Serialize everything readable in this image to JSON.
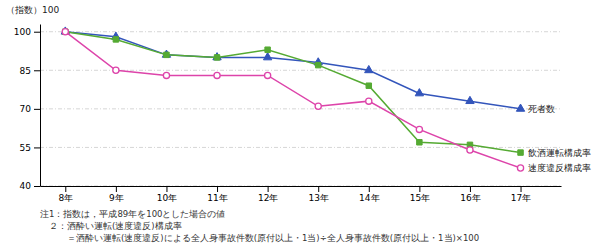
{
  "chart_data": {
    "type": "line",
    "y_label": "（指数）100",
    "x": [
      8,
      9,
      10,
      11,
      12,
      13,
      14,
      15,
      16,
      17
    ],
    "xlim": [
      7.5,
      17.8
    ],
    "xticks": [
      {
        "value": 8,
        "label": "8年"
      },
      {
        "value": 9,
        "label": "9年"
      },
      {
        "value": 10,
        "label": "10年"
      },
      {
        "value": 11,
        "label": "11年"
      },
      {
        "value": 12,
        "label": "12年"
      },
      {
        "value": 13,
        "label": "13年"
      },
      {
        "value": 14,
        "label": "14年"
      },
      {
        "value": 15,
        "label": "15年"
      },
      {
        "value": 16,
        "label": "16年"
      },
      {
        "value": 17,
        "label": "17年"
      }
    ],
    "ylim": [
      40,
      103
    ],
    "yticks": [
      40,
      55,
      70,
      85,
      100
    ],
    "grid": true,
    "series": [
      {
        "name": "死者数",
        "color": "#3355bb",
        "marker": "triangle",
        "values": [
          100,
          98,
          91,
          90,
          90,
          88,
          85,
          76,
          73,
          70
        ]
      },
      {
        "name": "飲酒運転構成率",
        "color": "#55aa33",
        "marker": "square",
        "values": [
          100,
          97,
          91,
          90,
          93,
          87,
          79,
          57,
          56,
          53
        ]
      },
      {
        "name": "速度違反構成率",
        "color": "#dd44aa",
        "marker": "open-circle",
        "values": [
          100,
          85,
          83,
          83,
          83,
          71,
          73,
          62,
          54,
          47
        ]
      }
    ],
    "notes": [
      "注1：指数は，平成89年を100とした場合の値",
      "　２：酒酔い運転(速度違反)構成率",
      "　　　＝酒酔い運転(速度違反)による全人身事故件数(原付以上・1当)÷全人身事故件数(原付以上・1当)×100"
    ]
  }
}
